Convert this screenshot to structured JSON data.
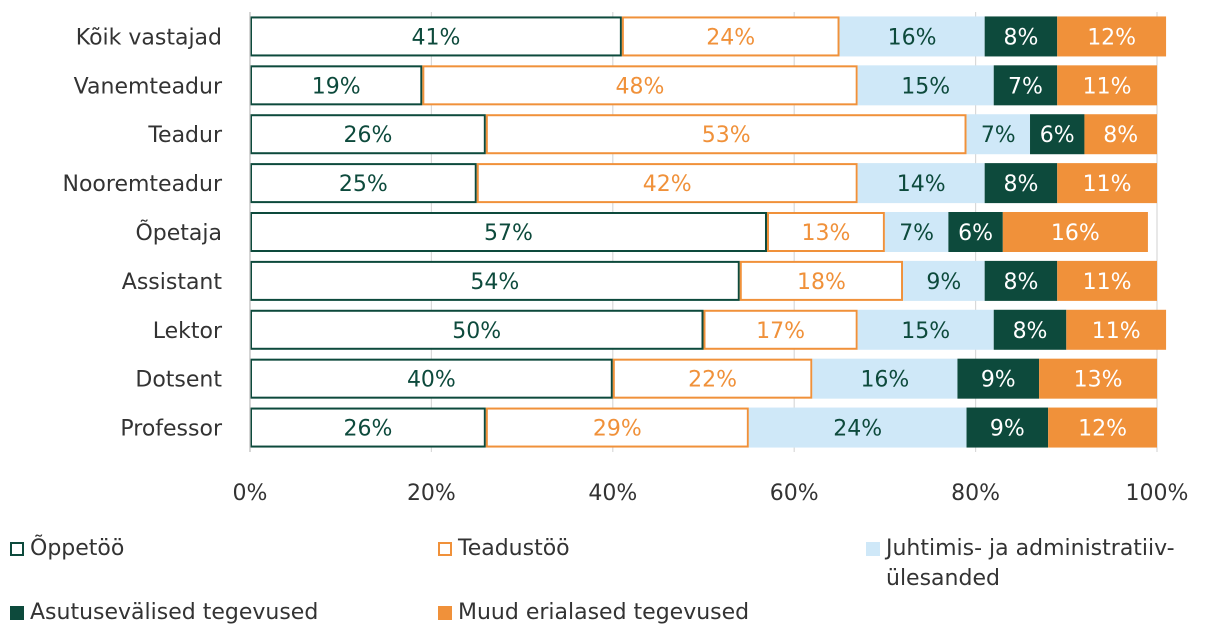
{
  "chart_data": {
    "type": "bar",
    "orientation": "horizontal",
    "stacked": "percent",
    "categories": [
      "Kõik vastajad",
      "Vanemteadur",
      "Teadur",
      "Nooremteadur",
      "Õpetaja",
      "Assistant",
      "Lektor",
      "Dotsent",
      "Professor"
    ],
    "series": [
      {
        "name": "Õppetöö",
        "values": [
          41,
          19,
          26,
          25,
          57,
          54,
          50,
          40,
          26
        ],
        "fill": "#ffffff",
        "stroke": "#0d4a3c",
        "label_color": "#0d4a3c"
      },
      {
        "name": "Teadustöö",
        "values": [
          24,
          48,
          53,
          42,
          13,
          18,
          17,
          22,
          29
        ],
        "fill": "#ffffff",
        "stroke": "#f0913a",
        "label_color": "#f0913a"
      },
      {
        "name": "Juhtimis- ja administratiiv-ülesanded",
        "values": [
          16,
          15,
          7,
          14,
          7,
          9,
          15,
          16,
          24
        ],
        "fill": "#cfe8f8",
        "stroke": "none",
        "label_color": "#0d4a3c"
      },
      {
        "name": "Asutusevälised tegevused",
        "values": [
          8,
          7,
          6,
          8,
          6,
          8,
          8,
          9,
          9
        ],
        "fill": "#0d4a3c",
        "stroke": "none",
        "label_color": "#ffffff"
      },
      {
        "name": "Muud erialased tegevused",
        "values": [
          12,
          11,
          8,
          11,
          16,
          11,
          11,
          13,
          12
        ],
        "fill": "#f0913a",
        "stroke": "none",
        "label_color": "#ffffff"
      }
    ],
    "x_ticks": [
      "0%",
      "20%",
      "40%",
      "60%",
      "80%",
      "100%"
    ],
    "xlim": [
      0,
      100
    ],
    "grid": true,
    "legend": "bottom",
    "title": "",
    "xlabel": "",
    "ylabel": ""
  }
}
